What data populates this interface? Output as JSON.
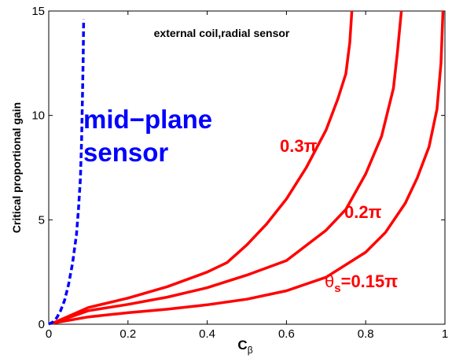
{
  "chart_data": {
    "type": "line",
    "title": "external coil,radial sensor",
    "xlabel": "C",
    "xlabel_subscript": "β",
    "ylabel": "Critical proportional gain",
    "xlim": [
      0,
      1
    ],
    "ylim": [
      0,
      15
    ],
    "x_ticks": [
      0,
      0.2,
      0.4,
      0.6,
      0.8,
      1
    ],
    "x_tick_labels": [
      "0",
      "0.2",
      "0.4",
      "0.6",
      "0.8",
      "1"
    ],
    "y_ticks": [
      0,
      5,
      10,
      15
    ],
    "y_tick_labels": [
      "0",
      "5",
      "10",
      "15"
    ],
    "grid": false,
    "series": [
      {
        "label": "0.3π",
        "color": "#ff0000",
        "style": "solid",
        "x": [
          0.01,
          0.1,
          0.2,
          0.3,
          0.4,
          0.45,
          0.5,
          0.55,
          0.6,
          0.65,
          0.7,
          0.73,
          0.75,
          0.76,
          0.765
        ],
        "y": [
          0.05,
          0.8,
          1.25,
          1.8,
          2.5,
          2.95,
          3.8,
          4.8,
          6.0,
          7.5,
          9.3,
          10.8,
          12.0,
          13.5,
          15.0
        ]
      },
      {
        "label": "0.2π",
        "color": "#ff0000",
        "style": "solid",
        "x": [
          0.01,
          0.1,
          0.2,
          0.3,
          0.4,
          0.5,
          0.6,
          0.7,
          0.75,
          0.8,
          0.84,
          0.87,
          0.88,
          0.89
        ],
        "y": [
          0.05,
          0.65,
          0.95,
          1.3,
          1.75,
          2.35,
          3.05,
          4.5,
          5.5,
          7.2,
          9.0,
          11.3,
          13.0,
          15.0
        ]
      },
      {
        "label": "θ",
        "label_subscript": "s",
        "label_suffix": "=0.15π",
        "color": "#ff0000",
        "style": "solid",
        "x": [
          0.01,
          0.1,
          0.2,
          0.3,
          0.4,
          0.5,
          0.6,
          0.7,
          0.8,
          0.85,
          0.9,
          0.93,
          0.96,
          0.98,
          0.99,
          0.995
        ],
        "y": [
          0.05,
          0.35,
          0.55,
          0.72,
          0.93,
          1.2,
          1.6,
          2.25,
          3.45,
          4.4,
          5.8,
          7.0,
          8.5,
          10.3,
          12.5,
          15.0
        ]
      },
      {
        "label": "mid-plane sensor",
        "label_lines": [
          "mid−plane",
          "sensor"
        ],
        "color": "#0000ff",
        "style": "dashed",
        "x": [
          0.0,
          0.01,
          0.02,
          0.03,
          0.04,
          0.05,
          0.06,
          0.07,
          0.075,
          0.08,
          0.083,
          0.085,
          0.087,
          0.088
        ],
        "y": [
          0.0,
          0.1,
          0.3,
          0.65,
          1.15,
          1.9,
          2.9,
          4.3,
          5.5,
          7.0,
          8.8,
          10.7,
          12.7,
          14.6
        ]
      }
    ]
  }
}
